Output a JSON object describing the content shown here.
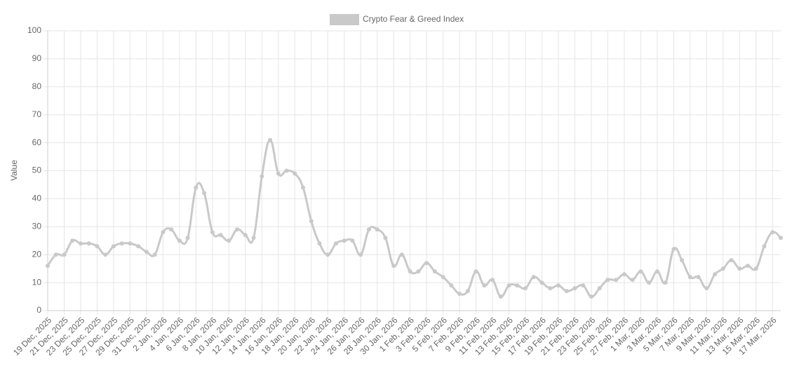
{
  "chart_data": {
    "type": "line",
    "y_label": "Value",
    "categories": [
      "19 Dec, 2025",
      null,
      "21 Dec, 2025",
      null,
      "23 Dec, 2025",
      null,
      "25 Dec, 2025",
      null,
      "27 Dec, 2025",
      null,
      "29 Dec, 2025",
      null,
      "31 Dec, 2025",
      null,
      "2 Jan, 2026",
      null,
      "4 Jan, 2026",
      null,
      "6 Jan, 2026",
      null,
      "8 Jan, 2026",
      null,
      "10 Jan, 2026",
      null,
      "12 Jan, 2026",
      null,
      "14 Jan, 2026",
      null,
      "16 Jan, 2026",
      null,
      "18 Jan, 2026",
      null,
      "20 Jan, 2026",
      null,
      "22 Jan, 2026",
      null,
      "24 Jan, 2026",
      null,
      "26 Jan, 2026",
      null,
      "28 Jan, 2026",
      null,
      "30 Jan, 2026",
      null,
      "1 Feb, 2026",
      null,
      "3 Feb, 2026",
      null,
      "5 Feb, 2026",
      null,
      "7 Feb, 2026",
      null,
      "9 Feb, 2026",
      null,
      "11 Feb, 2026",
      null,
      "13 Feb, 2026",
      null,
      "15 Feb, 2026",
      null,
      "17 Feb, 2026",
      null,
      "19 Feb, 2026",
      null,
      "21 Feb, 2026",
      null,
      "23 Feb, 2026",
      null,
      "25 Feb, 2026",
      null,
      "27 Feb, 2026",
      null,
      "1 Mar, 2026",
      null,
      "3 Mar, 2026",
      null,
      "5 Mar, 2026",
      null,
      "7 Mar, 2026",
      null,
      "9 Mar, 2026",
      null,
      "11 Mar, 2026",
      null,
      "13 Mar, 2026",
      null,
      "15 Mar, 2026",
      null,
      "17 Mar, 2026",
      null
    ],
    "series": [
      {
        "name": "Crypto Fear & Greed Index",
        "color": "#c9c9c9",
        "values": [
          16,
          20,
          20,
          25,
          24,
          24,
          23,
          20,
          23,
          24,
          24,
          23,
          21,
          20,
          28,
          29,
          25,
          26,
          44,
          42,
          28,
          27,
          25,
          29,
          27,
          26,
          48,
          61,
          49,
          50,
          49,
          44,
          32,
          24,
          20,
          24,
          25,
          25,
          20,
          29,
          29,
          26,
          16,
          20,
          14,
          14,
          17,
          14,
          12,
          9,
          6,
          7,
          14,
          9,
          11,
          5,
          9,
          9,
          8,
          12,
          10,
          8,
          9,
          7,
          8,
          9,
          5,
          8,
          11,
          11,
          13,
          11,
          14,
          10,
          14,
          10,
          22,
          18,
          12,
          12,
          8,
          13,
          15,
          18,
          15,
          16,
          15,
          23,
          28,
          26
        ]
      }
    ],
    "ylim": [
      0,
      100
    ],
    "yticks": [
      0,
      10,
      20,
      30,
      40,
      50,
      60,
      70,
      80,
      90,
      100
    ],
    "grid": true
  }
}
